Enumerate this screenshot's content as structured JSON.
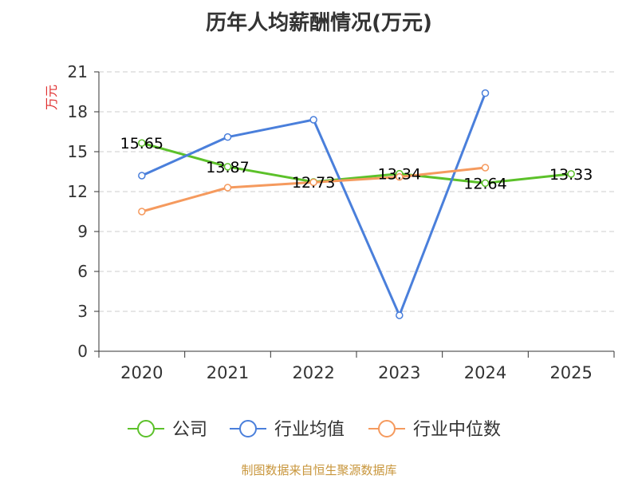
{
  "chart_data": {
    "type": "line",
    "title": "历年人均薪酬情况(万元)",
    "ylabel": "万元",
    "xlabel": "",
    "categories": [
      "2020",
      "2021",
      "2022",
      "2023",
      "2024",
      "2025"
    ],
    "ylim": [
      0,
      21
    ],
    "yticks": [
      0,
      3,
      6,
      9,
      12,
      15,
      18,
      21
    ],
    "grid": true,
    "legend_position": "bottom",
    "series": [
      {
        "name": "公司",
        "color": "#5cc12a",
        "values": [
          15.65,
          13.87,
          12.73,
          13.34,
          12.64,
          13.33
        ],
        "labels": [
          "15.65",
          "13.87",
          "12.73",
          "13.34",
          "12.64",
          "13.33"
        ]
      },
      {
        "name": "行业均值",
        "color": "#4a7fdb",
        "values": [
          13.2,
          16.1,
          17.4,
          2.7,
          19.4,
          null
        ],
        "labels": []
      },
      {
        "name": "行业中位数",
        "color": "#f59a5e",
        "values": [
          10.5,
          12.3,
          12.7,
          13.1,
          13.8,
          null
        ],
        "labels": []
      }
    ]
  },
  "source_note": "制图数据来自恒生聚源数据库",
  "colors": {
    "title": "#333333",
    "ylabel": "#e03030",
    "source_note": "#c8963c",
    "axis": "#333333",
    "grid": "#cccccc"
  }
}
